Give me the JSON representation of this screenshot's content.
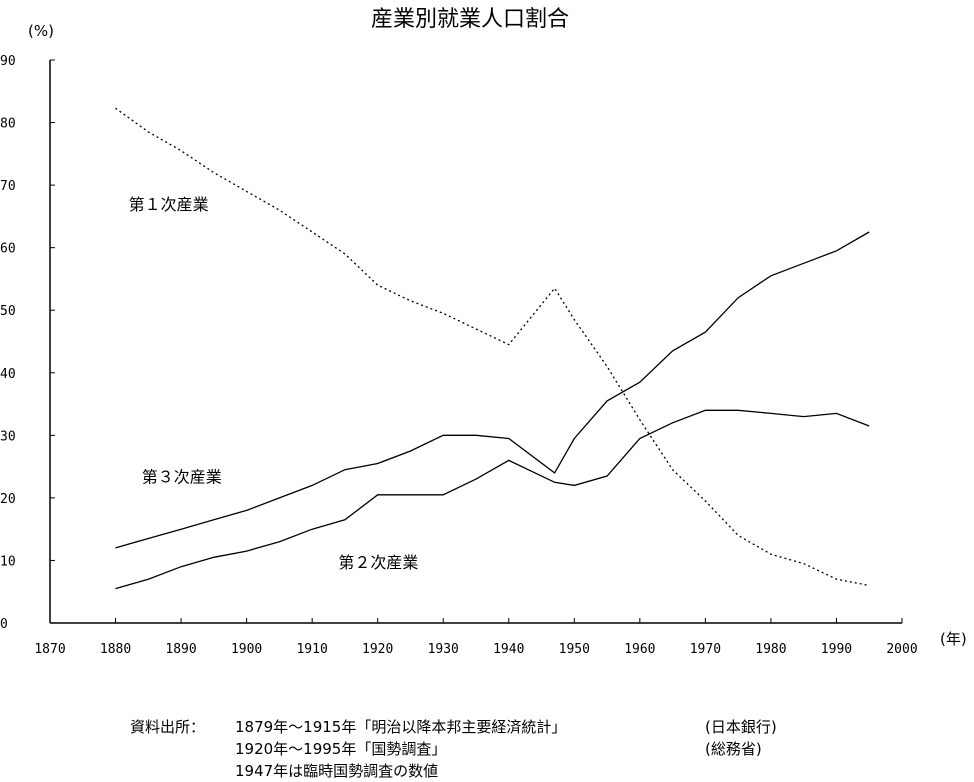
{
  "chart_data": {
    "type": "line",
    "title": "産業別就業人口割合",
    "ylabel": "(%)",
    "xlabel": "(年)",
    "xlim": [
      1870,
      2000
    ],
    "ylim": [
      0,
      90
    ],
    "xticks": [
      1870,
      1880,
      1890,
      1900,
      1910,
      1920,
      1930,
      1940,
      1950,
      1960,
      1970,
      1980,
      1990,
      2000
    ],
    "yticks": [
      0,
      10,
      20,
      30,
      40,
      50,
      60,
      70,
      80,
      90
    ],
    "grid": false,
    "series": [
      {
        "name": "第１次産業",
        "style": "dotted",
        "points": [
          [
            1880,
            82.3
          ],
          [
            1885,
            78.5
          ],
          [
            1890,
            75.5
          ],
          [
            1895,
            72
          ],
          [
            1900,
            69
          ],
          [
            1905,
            66
          ],
          [
            1910,
            62.5
          ],
          [
            1915,
            59
          ],
          [
            1920,
            54
          ],
          [
            1925,
            51.5
          ],
          [
            1930,
            49.5
          ],
          [
            1935,
            47
          ],
          [
            1940,
            44.5
          ],
          [
            1947,
            53.5
          ],
          [
            1950,
            48.5
          ],
          [
            1955,
            41
          ],
          [
            1960,
            32.5
          ],
          [
            1965,
            24.5
          ],
          [
            1970,
            19.5
          ],
          [
            1975,
            14
          ],
          [
            1980,
            11
          ],
          [
            1985,
            9.5
          ],
          [
            1990,
            7
          ],
          [
            1995,
            6
          ]
        ]
      },
      {
        "name": "第３次産業",
        "style": "solid",
        "points": [
          [
            1880,
            12
          ],
          [
            1885,
            13.5
          ],
          [
            1890,
            15
          ],
          [
            1895,
            16.5
          ],
          [
            1900,
            18
          ],
          [
            1905,
            20
          ],
          [
            1910,
            22
          ],
          [
            1915,
            24.5
          ],
          [
            1920,
            25.5
          ],
          [
            1925,
            27.5
          ],
          [
            1930,
            30
          ],
          [
            1935,
            30
          ],
          [
            1940,
            29.5
          ],
          [
            1947,
            24
          ],
          [
            1950,
            29.5
          ],
          [
            1955,
            35.5
          ],
          [
            1960,
            38.5
          ],
          [
            1965,
            43.5
          ],
          [
            1970,
            46.5
          ],
          [
            1975,
            52
          ],
          [
            1980,
            55.5
          ],
          [
            1985,
            57.5
          ],
          [
            1990,
            59.5
          ],
          [
            1995,
            62.5
          ]
        ]
      },
      {
        "name": "第２次産業",
        "style": "solid",
        "points": [
          [
            1880,
            5.5
          ],
          [
            1885,
            7
          ],
          [
            1890,
            9
          ],
          [
            1895,
            10.5
          ],
          [
            1900,
            11.5
          ],
          [
            1905,
            13
          ],
          [
            1910,
            15
          ],
          [
            1915,
            16.5
          ],
          [
            1920,
            20.5
          ],
          [
            1925,
            20.5
          ],
          [
            1930,
            20.5
          ],
          [
            1935,
            23
          ],
          [
            1940,
            26
          ],
          [
            1947,
            22.5
          ],
          [
            1950,
            22
          ],
          [
            1955,
            23.5
          ],
          [
            1960,
            29.5
          ],
          [
            1965,
            32
          ],
          [
            1970,
            34
          ],
          [
            1975,
            34
          ],
          [
            1980,
            33.5
          ],
          [
            1985,
            33
          ],
          [
            1990,
            33.5
          ],
          [
            1995,
            31.5
          ]
        ]
      }
    ],
    "series_labels": [
      {
        "series": 0,
        "text": "第１次産業",
        "at": [
          1882,
          66
        ]
      },
      {
        "series": 1,
        "text": "第３次産業",
        "at": [
          1884,
          22.5
        ]
      },
      {
        "series": 2,
        "text": "第２次産業",
        "at": [
          1914,
          8.8
        ]
      }
    ]
  },
  "source_note": {
    "heading": "資料出所：",
    "rows": [
      {
        "text": "1879年～1915年「明治以降本邦主要経済統計」",
        "org": "(日本銀行)"
      },
      {
        "text": "1920年～1995年「国勢調査」",
        "org": "(総務省)"
      },
      {
        "text": "1947年は臨時国勢調査の数値",
        "org": ""
      }
    ]
  }
}
